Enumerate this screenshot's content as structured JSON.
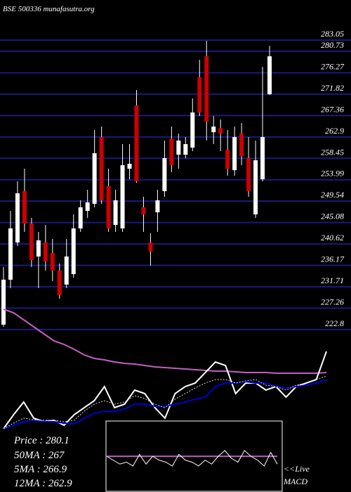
{
  "chart_data": [
    {
      "type": "candlestick",
      "title": "BSE 500336 munafasutra.org",
      "open": [
        223.82,
        233.18,
        240.93,
        251.61,
        244.88,
        238.01,
        240.93,
        238.74,
        235.08,
        232.16,
        234.35,
        243.86,
        247.51,
        248.98,
        262.87,
        252.63,
        244.59,
        243.86,
        256.29,
        269.45,
        248.25,
        240.93,
        247.22,
        251.61,
        262.58,
        259.21,
        259.21,
        260.68,
        275.3,
        279.69,
        263.89,
        264.77,
        260.24,
        255.99,
        263.6,
        258.48,
        246.78,
        254.1,
        271.79
      ],
      "high": [
        235.82,
        247.51,
        253.66,
        256.29,
        246.05,
        243.13,
        244.59,
        241.67,
        236.55,
        241.67,
        246.78,
        249.71,
        251.9,
        264.33,
        265.06,
        256.29,
        251.9,
        261.41,
        261.41,
        272.67,
        250.44,
        242.83,
        251.9,
        262.14,
        265.06,
        263.6,
        262.87,
        270.91,
        278.96,
        282.91,
        267.25,
        266.52,
        264.33,
        265.06,
        265.79,
        262.87,
        262.14,
        277.5,
        281.88
      ],
      "low": [
        223.38,
        231.43,
        240.2,
        243.13,
        235.82,
        231.43,
        235.08,
        232.89,
        229.23,
        231.43,
        233.62,
        243.13,
        246.05,
        248.25,
        248.98,
        243.13,
        243.13,
        243.13,
        254.1,
        253.36,
        243.13,
        236.11,
        243.13,
        250.44,
        255.56,
        256.29,
        258.48,
        259.95,
        267.25,
        262.14,
        261.41,
        259.95,
        254.83,
        254.83,
        257.02,
        250.44,
        246.05,
        253.66,
        271.65
      ],
      "close": [
        233.18,
        243.86,
        251.17,
        244.88,
        237.28,
        241.37,
        236.99,
        235.08,
        229.97,
        238.01,
        243.86,
        248.25,
        249.27,
        259.51,
        249.71,
        243.86,
        249.71,
        257.02,
        257.31,
        253.66,
        246.78,
        239.03,
        249.71,
        258.48,
        257.02,
        262.14,
        261.41,
        267.99,
        267.99,
        266.09,
        265.06,
        263.6,
        256.29,
        262.87,
        258.92,
        251.61,
        258.04,
        262.87,
        279.69
      ],
      "up_color": "#ffffff",
      "down_color": "#cc0000",
      "wick_color": "#ffffff",
      "ylim": [
        220,
        286
      ],
      "yticks": [
        283.05,
        280.73,
        276.27,
        271.82,
        267.36,
        262.9,
        258.45,
        253.99,
        249.54,
        245.08,
        240.62,
        236.17,
        231.71,
        227.26,
        222.8
      ],
      "grid": true,
      "grid_color": "#1a1a80"
    },
    {
      "type": "line",
      "series": [
        {
          "color": "#c060c0",
          "values": [
            180,
            175,
            165,
            155,
            145,
            135,
            130,
            123,
            115,
            110,
            108,
            105,
            103,
            102,
            100,
            98,
            97,
            96,
            95,
            94,
            93,
            92,
            92,
            91,
            90,
            90,
            90,
            89,
            89,
            89,
            89,
            89,
            90
          ]
        },
        {
          "color": "#ffffff",
          "values": [
            10,
            30,
            48,
            25,
            20,
            22,
            15,
            30,
            40,
            50,
            70,
            40,
            45,
            65,
            60,
            40,
            25,
            60,
            70,
            75,
            90,
            105,
            100,
            60,
            75,
            75,
            65,
            70,
            55,
            70,
            75,
            80,
            120
          ]
        },
        {
          "color": "#0000cc",
          "values": [
            10,
            15,
            20,
            22,
            20,
            20,
            18,
            17,
            25,
            32,
            35,
            35,
            38,
            45,
            45,
            42,
            42,
            45,
            48,
            52,
            55,
            70,
            75,
            75,
            77,
            75,
            75,
            70,
            68,
            70,
            72,
            75,
            80
          ]
        },
        {
          "color": "#dddddd",
          "dashed": true,
          "values": [
            10,
            18,
            25,
            23,
            22,
            22,
            20,
            22,
            35,
            45,
            50,
            45,
            48,
            57,
            53,
            45,
            40,
            52,
            60,
            68,
            75,
            80,
            80,
            75,
            78,
            80,
            72,
            70,
            65,
            72,
            75,
            80,
            85
          ]
        }
      ],
      "legend_text": [
        "Price  : 280.1",
        "50MA : 267",
        "5MA : 266.9",
        "12MA : 262.9"
      ]
    },
    {
      "type": "macd",
      "title": "MACD",
      "label": "<<Live",
      "series": [
        {
          "color": "#c060c0",
          "values": [
            0,
            0,
            0,
            0,
            0,
            0,
            0,
            0,
            0,
            0,
            0,
            0,
            0,
            0,
            0,
            0,
            0,
            0,
            0,
            0,
            0,
            0,
            0,
            0,
            0,
            0,
            0
          ]
        },
        {
          "color": "#ffffff",
          "values": [
            0,
            -2,
            -4,
            -3,
            -5,
            1,
            -4,
            0,
            -2,
            -3,
            -5,
            1,
            -2,
            -3,
            -5,
            -2,
            -4,
            0,
            3,
            -1,
            -3,
            3,
            0,
            -2,
            -5,
            2,
            -4
          ]
        }
      ]
    }
  ]
}
